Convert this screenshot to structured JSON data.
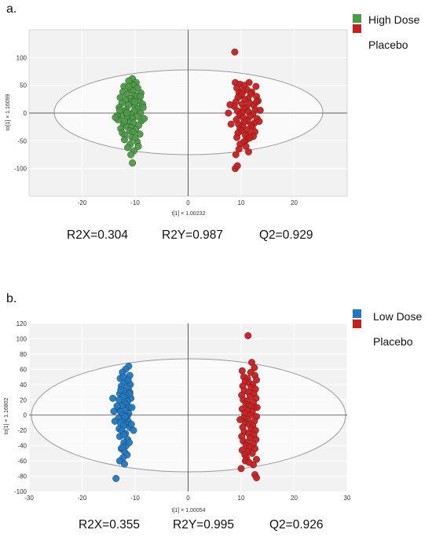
{
  "chart_data": [
    {
      "type": "scatter",
      "panel_label": "a.",
      "xlabel": "t[1] × 1.00232",
      "ylabel": "to[1] × 1.16099",
      "xlim": [
        -30,
        30
      ],
      "ylim": [
        -150,
        150
      ],
      "x_ticks": [
        -20,
        -10,
        0,
        10,
        20
      ],
      "y_ticks": [
        100,
        50,
        0,
        -50,
        -100
      ],
      "grid": true,
      "legend_position": "top-right",
      "series": [
        {
          "name": "High Dose",
          "color": "#4a9a46",
          "points": [
            [
              -10.5,
              62
            ],
            [
              -11.2,
              58
            ],
            [
              -9.8,
              55
            ],
            [
              -10.3,
              50
            ],
            [
              -12.1,
              48
            ],
            [
              -9.5,
              45
            ],
            [
              -11.0,
              42
            ],
            [
              -10.4,
              40
            ],
            [
              -12.3,
              38
            ],
            [
              -8.9,
              36
            ],
            [
              -11.5,
              34
            ],
            [
              -10.1,
              32
            ],
            [
              -9.7,
              30
            ],
            [
              -12.8,
              28
            ],
            [
              -10.9,
              26
            ],
            [
              -11.8,
              24
            ],
            [
              -9.2,
              22
            ],
            [
              -10.6,
              20
            ],
            [
              -12.5,
              18
            ],
            [
              -8.6,
              16
            ],
            [
              -11.3,
              14
            ],
            [
              -10.0,
              12
            ],
            [
              -13.0,
              10
            ],
            [
              -9.4,
              8
            ],
            [
              -11.7,
              6
            ],
            [
              -10.2,
              4
            ],
            [
              -12.0,
              2
            ],
            [
              -9.0,
              0
            ],
            [
              -10.8,
              -2
            ],
            [
              -12.6,
              -4
            ],
            [
              -9.6,
              -6
            ],
            [
              -11.4,
              -8
            ],
            [
              -10.5,
              -10
            ],
            [
              -13.2,
              -12
            ],
            [
              -8.8,
              -14
            ],
            [
              -11.1,
              -16
            ],
            [
              -10.3,
              -18
            ],
            [
              -12.2,
              -20
            ],
            [
              -9.3,
              -22
            ],
            [
              -11.6,
              -24
            ],
            [
              -10.7,
              -26
            ],
            [
              -12.7,
              -28
            ],
            [
              -9.9,
              -30
            ],
            [
              -11.0,
              -32
            ],
            [
              -10.4,
              -34
            ],
            [
              -12.4,
              -36
            ],
            [
              -9.1,
              -38
            ],
            [
              -11.9,
              -40
            ],
            [
              -10.6,
              -44
            ],
            [
              -12.0,
              -48
            ],
            [
              -9.6,
              -52
            ],
            [
              -10.9,
              -56
            ],
            [
              -11.4,
              -62
            ],
            [
              -10.2,
              -68
            ],
            [
              -9.4,
              -60
            ],
            [
              -12.9,
              5
            ],
            [
              -8.5,
              10
            ],
            [
              -13.4,
              -5
            ],
            [
              -8.3,
              -10
            ],
            [
              -11.2,
              48
            ],
            [
              -10.1,
              20
            ],
            [
              -12.0,
              -15
            ],
            [
              -10.8,
              -75
            ],
            [
              -10.5,
              -90
            ],
            [
              -13.7,
              -8
            ],
            [
              -9.0,
              30
            ],
            [
              -11.5,
              0
            ],
            [
              -10.0,
              -45
            ]
          ]
        },
        {
          "name": "Placebo",
          "color": "#c81e1e",
          "points": [
            [
              8.8,
              110
            ],
            [
              8.9,
              55
            ],
            [
              11.5,
              55
            ],
            [
              9.8,
              52
            ],
            [
              10.6,
              50
            ],
            [
              12.8,
              48
            ],
            [
              9.2,
              45
            ],
            [
              11.1,
              42
            ],
            [
              10.3,
              40
            ],
            [
              12.0,
              38
            ],
            [
              9.6,
              36
            ],
            [
              11.8,
              34
            ],
            [
              10.0,
              32
            ],
            [
              12.9,
              30
            ],
            [
              9.4,
              28
            ],
            [
              11.3,
              26
            ],
            [
              10.7,
              24
            ],
            [
              13.2,
              22
            ],
            [
              9.0,
              20
            ],
            [
              11.6,
              18
            ],
            [
              10.2,
              16
            ],
            [
              12.4,
              14
            ],
            [
              8.7,
              12
            ],
            [
              11.0,
              10
            ],
            [
              10.5,
              8
            ],
            [
              12.7,
              6
            ],
            [
              9.3,
              4
            ],
            [
              11.4,
              2
            ],
            [
              10.1,
              0
            ],
            [
              12.2,
              -2
            ],
            [
              9.7,
              -4
            ],
            [
              11.7,
              -6
            ],
            [
              10.4,
              -8
            ],
            [
              13.0,
              -10
            ],
            [
              9.1,
              -12
            ],
            [
              11.2,
              -14
            ],
            [
              10.6,
              -16
            ],
            [
              12.5,
              -18
            ],
            [
              9.5,
              -20
            ],
            [
              11.9,
              -22
            ],
            [
              10.3,
              -24
            ],
            [
              12.1,
              -26
            ],
            [
              9.8,
              -28
            ],
            [
              11.1,
              -30
            ],
            [
              10.0,
              -32
            ],
            [
              12.6,
              -34
            ],
            [
              9.4,
              -36
            ],
            [
              11.5,
              -38
            ],
            [
              10.8,
              -40
            ],
            [
              12.3,
              -42
            ],
            [
              9.2,
              -44
            ],
            [
              11.0,
              -48
            ],
            [
              10.5,
              -52
            ],
            [
              9.8,
              -56
            ],
            [
              10.9,
              -60
            ],
            [
              9.6,
              -65
            ],
            [
              11.4,
              -70
            ],
            [
              9.0,
              -75
            ],
            [
              8.9,
              -100
            ],
            [
              9.3,
              -95
            ],
            [
              7.9,
              15
            ],
            [
              8.1,
              -20
            ],
            [
              13.6,
              5
            ],
            [
              13.4,
              -15
            ],
            [
              12.9,
              20
            ],
            [
              7.6,
              0
            ],
            [
              10.2,
              35
            ],
            [
              11.6,
              -45
            ]
          ]
        }
      ],
      "stats": {
        "r2x": "R2X=0.304",
        "r2y": "R2Y=0.987",
        "q2": "Q2=0.929"
      },
      "legend_labels": [
        "High Dose",
        "Placebo"
      ]
    },
    {
      "type": "scatter",
      "panel_label": "b.",
      "xlabel": "t[1] × 1.00054",
      "ylabel": "to[1] × 1.16802",
      "xlim": [
        -30,
        30
      ],
      "ylim": [
        -100,
        120
      ],
      "x_ticks": [
        -30,
        -20,
        -10,
        0,
        10,
        20,
        30
      ],
      "y_ticks": [
        120,
        100,
        80,
        60,
        40,
        20,
        0,
        -20,
        -40,
        -60,
        -80,
        -100
      ],
      "grid": true,
      "legend_position": "top-right",
      "series": [
        {
          "name": "Low Dose",
          "color": "#1f78c1",
          "points": [
            [
              -11.2,
              64
            ],
            [
              -11.8,
              60
            ],
            [
              -12.4,
              56
            ],
            [
              -11.0,
              52
            ],
            [
              -12.8,
              48
            ],
            [
              -11.5,
              45
            ],
            [
              -12.1,
              42
            ],
            [
              -10.9,
              40
            ],
            [
              -12.6,
              38
            ],
            [
              -11.3,
              35
            ],
            [
              -12.2,
              32
            ],
            [
              -11.0,
              30
            ],
            [
              -12.9,
              28
            ],
            [
              -11.6,
              26
            ],
            [
              -12.3,
              24
            ],
            [
              -10.8,
              22
            ],
            [
              -13.0,
              20
            ],
            [
              -11.4,
              18
            ],
            [
              -12.0,
              16
            ],
            [
              -11.7,
              14
            ],
            [
              -12.5,
              12
            ],
            [
              -11.1,
              10
            ],
            [
              -13.3,
              8
            ],
            [
              -11.9,
              6
            ],
            [
              -12.7,
              4
            ],
            [
              -11.2,
              2
            ],
            [
              -12.4,
              0
            ],
            [
              -11.5,
              -2
            ],
            [
              -13.1,
              -4
            ],
            [
              -12.0,
              -6
            ],
            [
              -11.3,
              -8
            ],
            [
              -12.8,
              -10
            ],
            [
              -11.6,
              -12
            ],
            [
              -12.2,
              -14
            ],
            [
              -11.0,
              -16
            ],
            [
              -13.0,
              -18
            ],
            [
              -12.5,
              -20
            ],
            [
              -11.8,
              -24
            ],
            [
              -12.9,
              -28
            ],
            [
              -11.4,
              -32
            ],
            [
              -12.1,
              -36
            ],
            [
              -11.7,
              -40
            ],
            [
              -12.6,
              -44
            ],
            [
              -12.0,
              -48
            ],
            [
              -11.5,
              -52
            ],
            [
              -12.3,
              -56
            ],
            [
              -12.9,
              -60
            ],
            [
              -12.0,
              -64
            ],
            [
              -13.6,
              -83
            ],
            [
              -14.2,
              22
            ],
            [
              -14.0,
              5
            ],
            [
              -13.8,
              -8
            ],
            [
              -10.3,
              -20
            ],
            [
              -10.6,
              10
            ],
            [
              -12.2,
              50
            ],
            [
              -11.1,
              -36
            ],
            [
              -12.7,
              33
            ],
            [
              -11.9,
              -2
            ],
            [
              -10.7,
              -12
            ],
            [
              -13.4,
              12
            ],
            [
              -11.3,
              46
            ],
            [
              -12.4,
              -42
            ],
            [
              -11.0,
              28
            ],
            [
              -12.1,
              -26
            ]
          ]
        },
        {
          "name": "Placebo",
          "color": "#c81e1e",
          "points": [
            [
              11.3,
              104
            ],
            [
              12.0,
              69
            ],
            [
              12.5,
              62
            ],
            [
              10.2,
              58
            ],
            [
              11.8,
              56
            ],
            [
              12.6,
              52
            ],
            [
              10.5,
              50
            ],
            [
              11.2,
              48
            ],
            [
              12.9,
              46
            ],
            [
              10.8,
              44
            ],
            [
              11.5,
              42
            ],
            [
              12.2,
              40
            ],
            [
              10.3,
              38
            ],
            [
              11.9,
              36
            ],
            [
              12.7,
              34
            ],
            [
              10.6,
              32
            ],
            [
              11.4,
              30
            ],
            [
              12.4,
              28
            ],
            [
              10.1,
              26
            ],
            [
              11.7,
              24
            ],
            [
              12.8,
              22
            ],
            [
              10.4,
              20
            ],
            [
              11.1,
              18
            ],
            [
              12.3,
              16
            ],
            [
              10.9,
              14
            ],
            [
              11.6,
              12
            ],
            [
              12.6,
              10
            ],
            [
              10.2,
              8
            ],
            [
              11.3,
              6
            ],
            [
              12.1,
              4
            ],
            [
              10.7,
              2
            ],
            [
              11.8,
              0
            ],
            [
              12.9,
              -2
            ],
            [
              10.5,
              -4
            ],
            [
              11.2,
              -6
            ],
            [
              12.5,
              -8
            ],
            [
              10.8,
              -10
            ],
            [
              11.5,
              -12
            ],
            [
              12.2,
              -14
            ],
            [
              10.3,
              -16
            ],
            [
              11.9,
              -18
            ],
            [
              12.7,
              -20
            ],
            [
              10.6,
              -22
            ],
            [
              11.4,
              -24
            ],
            [
              12.4,
              -26
            ],
            [
              10.1,
              -28
            ],
            [
              11.7,
              -30
            ],
            [
              12.8,
              -32
            ],
            [
              10.4,
              -34
            ],
            [
              11.1,
              -36
            ],
            [
              12.3,
              -38
            ],
            [
              10.9,
              -40
            ],
            [
              11.6,
              -42
            ],
            [
              12.6,
              -44
            ],
            [
              10.2,
              -46
            ],
            [
              11.3,
              -48
            ],
            [
              12.1,
              -50
            ],
            [
              10.7,
              -52
            ],
            [
              11.0,
              -56
            ],
            [
              12.9,
              -58
            ],
            [
              10.8,
              -60
            ],
            [
              12.3,
              -65
            ],
            [
              11.5,
              -62
            ],
            [
              12.6,
              -78
            ],
            [
              12.9,
              -82
            ],
            [
              10.0,
              -70
            ],
            [
              13.0,
              10
            ],
            [
              9.8,
              -6
            ]
          ]
        }
      ],
      "stats": {
        "r2x": "R2X=0.355",
        "r2y": "R2Y=0.995",
        "q2": "Q2=0.926"
      },
      "legend_labels": [
        "Low Dose",
        "Placebo"
      ]
    }
  ]
}
